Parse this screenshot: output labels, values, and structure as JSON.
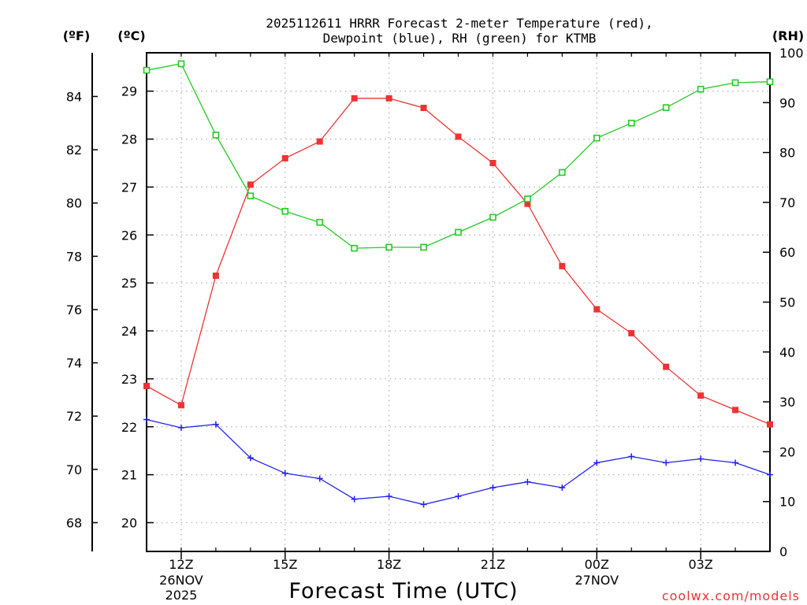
{
  "chart_data": {
    "type": "line",
    "title_line1": "2025112611 HRRR Forecast 2-meter Temperature (red),",
    "title_line2": "Dewpoint (blue), RH (green) for KTMB",
    "units": {
      "fahrenheit": "(ºF)",
      "celsius": "(ºC)",
      "rh": "(RH)"
    },
    "xlabel": "Forecast Time (UTC)",
    "credit": "coolwx.com/models",
    "x_hours": [
      11,
      12,
      13,
      14,
      15,
      16,
      17,
      18,
      19,
      20,
      21,
      22,
      23,
      24,
      25,
      26,
      27,
      28,
      29
    ],
    "xlim": [
      11,
      29
    ],
    "x_ticks": [
      {
        "hour": 12,
        "label": "12Z",
        "sub1": "26NOV",
        "sub2": "2025"
      },
      {
        "hour": 15,
        "label": "15Z",
        "sub1": "",
        "sub2": ""
      },
      {
        "hour": 18,
        "label": "18Z",
        "sub1": "",
        "sub2": ""
      },
      {
        "hour": 21,
        "label": "21Z",
        "sub1": "",
        "sub2": ""
      },
      {
        "hour": 24,
        "label": "00Z",
        "sub1": "27NOV",
        "sub2": ""
      },
      {
        "hour": 27,
        "label": "03Z",
        "sub1": "",
        "sub2": ""
      }
    ],
    "celsius_ylim": [
      19.4,
      29.8
    ],
    "celsius_ticks": [
      "20",
      "21",
      "22",
      "23",
      "24",
      "25",
      "26",
      "27",
      "28",
      "29"
    ],
    "fahrenheit_ticks": [
      "68",
      "70",
      "72",
      "74",
      "76",
      "78",
      "80",
      "82",
      "84"
    ],
    "rh_ylim": [
      0,
      100
    ],
    "rh_ticks": [
      "0",
      "10",
      "20",
      "30",
      "40",
      "50",
      "60",
      "70",
      "80",
      "90",
      "100"
    ],
    "series": [
      {
        "name": "Temperature",
        "units": "C",
        "color": "#ee3333",
        "marker": "filled-square",
        "values": [
          22.85,
          22.45,
          25.15,
          27.05,
          27.6,
          27.95,
          28.85,
          28.85,
          28.65,
          28.05,
          27.5,
          26.65,
          25.35,
          24.45,
          23.95,
          23.25,
          22.65,
          22.35,
          22.05
        ]
      },
      {
        "name": "Dewpoint",
        "units": "C",
        "color": "#2222ee",
        "marker": "plus",
        "values": [
          22.15,
          21.98,
          22.05,
          21.35,
          21.03,
          20.92,
          20.49,
          20.55,
          20.38,
          20.55,
          20.73,
          20.85,
          20.73,
          21.25,
          21.38,
          21.25,
          21.33,
          21.25,
          21.0
        ]
      },
      {
        "name": "RH",
        "units": "%",
        "color": "#22cc22",
        "marker": "open-square",
        "values": [
          96.5,
          97.8,
          83.5,
          71.3,
          68.2,
          66.0,
          60.8,
          61.0,
          61.0,
          64.0,
          67.0,
          70.7,
          76.0,
          82.9,
          85.9,
          89.0,
          92.7,
          94.0,
          94.2
        ]
      }
    ]
  }
}
